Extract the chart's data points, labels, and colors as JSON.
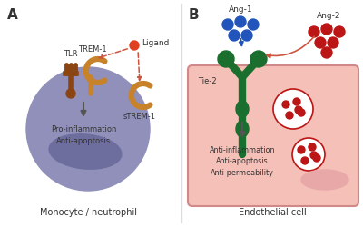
{
  "panel_A_label": "A",
  "panel_B_label": "B",
  "cell_A_color": "#9090bb",
  "cell_A_nucleus_color": "#6e6e9e",
  "cell_B_color": "#f5c0b8",
  "cell_B_border_color": "#d08888",
  "tlr_color": "#8b4513",
  "trem1_color": "#c8822a",
  "strem1_color": "#c8822a",
  "ligand_color": "#e04020",
  "ang1_color": "#2255bb",
  "ang2_color": "#bb1515",
  "tie2_color": "#1a6e2e",
  "arrow_color": "#555555",
  "red_arrow_color": "#cc5540",
  "text_color": "#333333",
  "monocyte_label": "Monocyte / neutrophil",
  "endothelial_label": "Endothelial cell",
  "pro_inflammation_text": "Pro-inflammation\nAnti-apoptosis",
  "anti_inflammation_text": "Anti-inflammation\nAnti-apoptosis\nAnti-permeability",
  "background_color": "#ffffff"
}
